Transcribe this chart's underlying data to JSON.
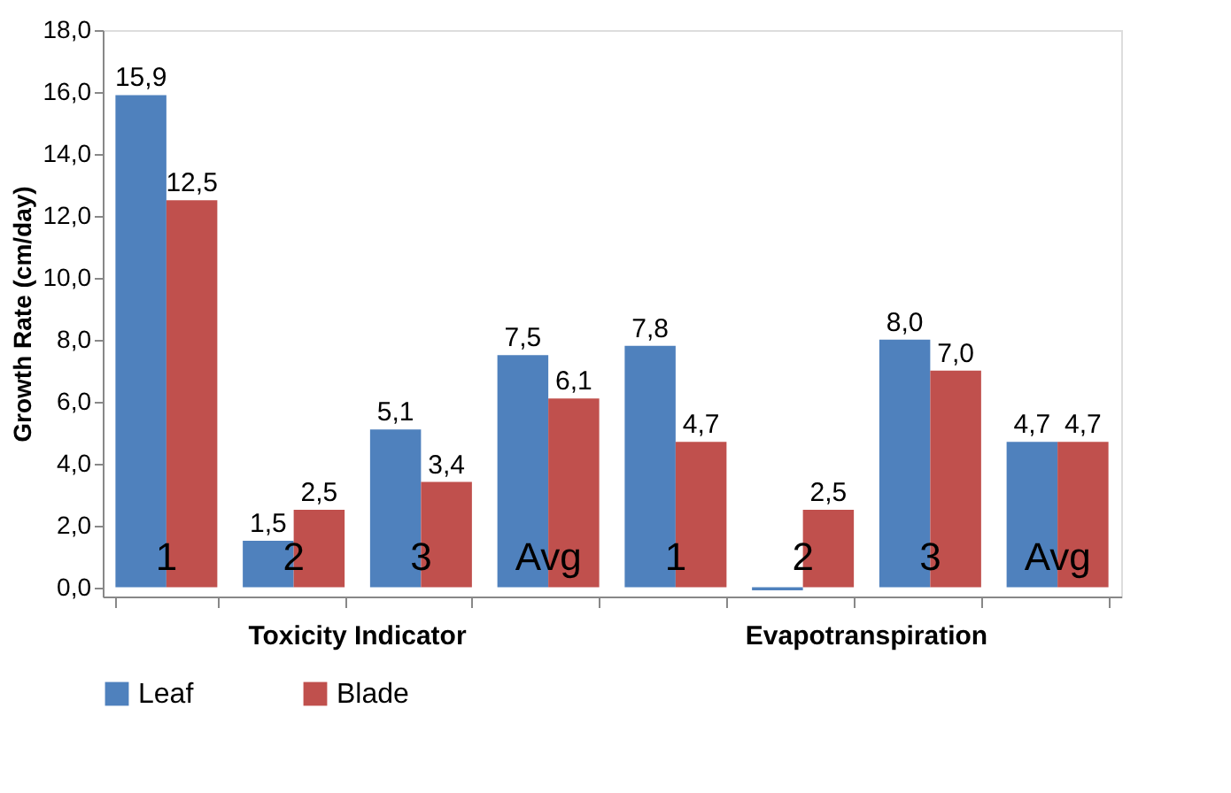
{
  "chart_data": {
    "type": "bar",
    "ylabel": "Growth Rate (cm/day)",
    "categories": [
      "1",
      "2",
      "3",
      "Avg",
      "1",
      "2",
      "3",
      "Avg"
    ],
    "annotations": [
      "Toxicity Indicator",
      "Evapotranspiration"
    ],
    "series": [
      {
        "name": "Leaf",
        "color": "#4f81bd",
        "values": [
          15.9,
          1.5,
          5.1,
          7.5,
          7.8,
          -0.1,
          8.0,
          4.7
        ],
        "value_labels": [
          "15,9",
          "1,5",
          "5,1",
          "7,5",
          "7,8",
          null,
          "8,0",
          "4,7"
        ]
      },
      {
        "name": "Blade",
        "color": "#c0504d",
        "values": [
          12.5,
          2.5,
          3.4,
          6.1,
          4.7,
          2.5,
          7.0,
          4.7
        ],
        "value_labels": [
          "12,5",
          "2,5",
          "3,4",
          "6,1",
          "4,7",
          "2,5",
          "7,0",
          "4,7"
        ]
      }
    ],
    "ylim": [
      -0.3,
      18
    ],
    "yticks": [
      {
        "value": 0,
        "label": "0,0"
      },
      {
        "value": 2,
        "label": "2,0"
      },
      {
        "value": 4,
        "label": "4,0"
      },
      {
        "value": 6,
        "label": "6,0"
      },
      {
        "value": 8,
        "label": "8,0"
      },
      {
        "value": 10,
        "label": "10,0"
      },
      {
        "value": 12,
        "label": "12,0"
      },
      {
        "value": 14,
        "label": "14,0"
      },
      {
        "value": 16,
        "label": "16,0"
      },
      {
        "value": 18,
        "label": "18,0"
      }
    ],
    "grid": false,
    "legend": "bottom"
  }
}
